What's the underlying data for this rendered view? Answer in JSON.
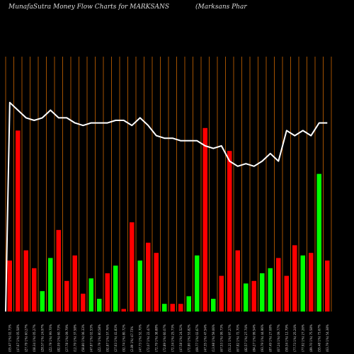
{
  "header": {
    "left": "MunafaSutra  Money Flow  Charts for MARKSANS",
    "right": "(Marksans Phar"
  },
  "chart_data": {
    "type": "bar",
    "title": "MunafaSutra  Money Flow  Charts for MARKSANS",
    "grid": "vertical",
    "ylim": [
      0,
      100
    ],
    "colors": {
      "up": "#00ff00",
      "down": "#ff0000",
      "line": "#ffffff",
      "grid": "#cc6600",
      "label": "#cccccc"
    },
    "series": [
      {
        "type": "bar",
        "values": [
          20,
          71,
          24,
          17,
          8,
          21,
          32,
          12,
          22,
          7,
          13,
          5,
          15,
          18,
          1,
          35,
          20,
          27,
          23,
          3,
          3,
          3,
          6,
          22,
          72,
          5,
          14,
          63,
          24,
          11,
          12,
          15,
          17,
          21,
          14,
          26,
          22,
          23,
          54,
          20
        ],
        "colors": [
          "red",
          "red",
          "red",
          "red",
          "green",
          "green",
          "red",
          "red",
          "red",
          "red",
          "green",
          "green",
          "red",
          "green",
          "red",
          "red",
          "green",
          "red",
          "red",
          "green",
          "red",
          "red",
          "green",
          "green",
          "red",
          "green",
          "red",
          "red",
          "red",
          "green",
          "red",
          "green",
          "green",
          "red",
          "red",
          "red",
          "green",
          "red",
          "green",
          "red"
        ]
      },
      {
        "type": "line",
        "values": [
          82,
          79,
          76,
          75,
          76,
          79,
          76,
          76,
          74,
          73,
          74,
          74,
          74,
          75,
          75,
          73,
          76,
          73,
          69,
          68,
          68,
          67,
          67,
          67,
          65,
          64,
          65,
          59,
          57,
          58,
          57,
          59,
          62,
          59,
          71,
          69,
          71,
          69,
          74,
          74
        ]
      }
    ],
    "x_tick_labels": [
      "(05.47 1%) 02.73%",
      "(47.67 1%) 05.58%",
      "(Z7.79 1%) 60.27%",
      "(08.34 1%) 05.27%",
      "(Z8.57 1%) 24.97%",
      "(Z2.79 1%) 99.70%",
      "(82.09 1%) 60.73%",
      "(27.78 1%) 09.79%",
      "(12.79 1%) 37.58%",
      "(58.80 1%) 06.33%",
      "(47.87 1%) 02.53%",
      "(Z2.79 1%) 80.58%",
      "(92.87 1%) 57.76%",
      "(27.63 1%) 41.83%",
      "(92.74 1%) 80.72%",
      "(2.89 1%) 47.73%",
      "(47.73 1%) 52.70%",
      "(72.07 1%) 22.47%",
      "(72.79 1%) 38.88%",
      "(72.89 1%) 60.07%",
      "(72.34 1%) 25.73%",
      "(47.58 1%) 24.52%",
      "(72.80 1%) 53.82%",
      "(69.77 1%) 02.67%",
      "(47.35 1%) 47.54%",
      "(13.98 1%) 59.06%",
      "(67.53 1%) 99.73%",
      "(51.21 1%) 97.27%",
      "(67.82 1%) 72.70%",
      "(82.57 1%) 27.74%",
      "(84.27 1%) 99.54%",
      "(93.79 1%) 44.96%",
      "(87.49 1%) 27.08%",
      "(67.24 1%) 09.77%",
      "(59.34 1%) 12.79%",
      "(77.73 1%) 25.24%",
      "(77.92 1%) 27.26%",
      "(89.70 1%) 75.58%",
      "(55.48 1%) 73.67%",
      "(63.79 1%) 54.38%"
    ]
  }
}
